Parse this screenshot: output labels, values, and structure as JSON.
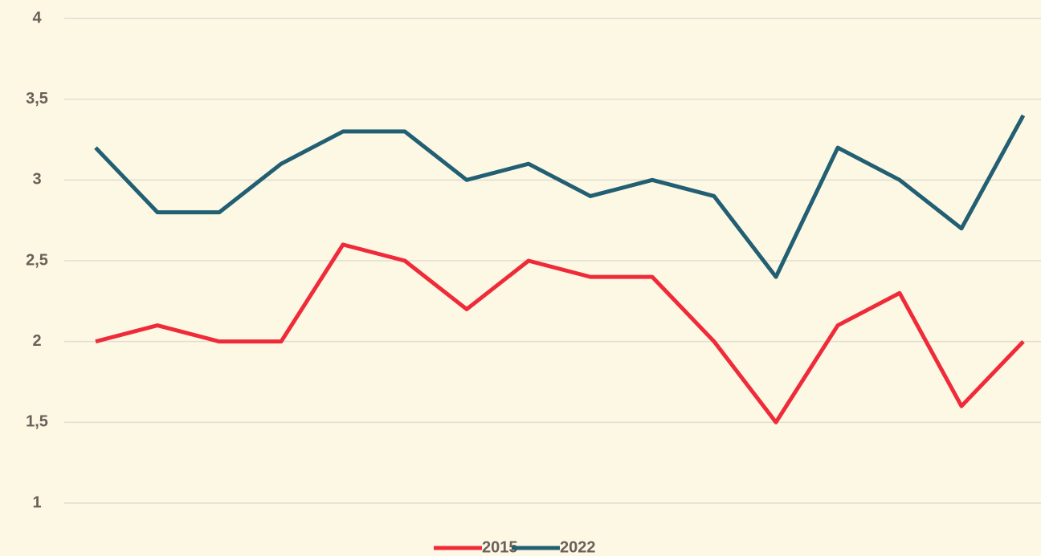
{
  "chart_data": {
    "type": "line",
    "categories": [
      null,
      null,
      null,
      null,
      null,
      null,
      null,
      null,
      null,
      null,
      null,
      null,
      null,
      null,
      null,
      null
    ],
    "series": [
      {
        "name": "2015",
        "color": "#ef2b3a",
        "values": [
          2.0,
          2.1,
          2.0,
          2.0,
          2.6,
          2.5,
          2.2,
          2.5,
          2.4,
          2.4,
          2.0,
          1.5,
          2.1,
          2.3,
          1.6,
          2.0
        ]
      },
      {
        "name": "2022",
        "color": "#225f73",
        "values": [
          3.2,
          2.8,
          2.8,
          3.1,
          3.3,
          3.3,
          3.0,
          3.1,
          2.9,
          3.0,
          2.9,
          2.4,
          3.2,
          3.0,
          2.7,
          3.4
        ]
      }
    ],
    "ylim": [
      1,
      4
    ],
    "yticks": [
      1,
      {
        "value": 1.5,
        "label": "1,5"
      },
      2,
      {
        "value": 2.5,
        "label": "2,5"
      },
      3,
      {
        "value": 3.5,
        "label": "3,5"
      },
      4
    ],
    "grid": true,
    "legend": "bottom"
  }
}
